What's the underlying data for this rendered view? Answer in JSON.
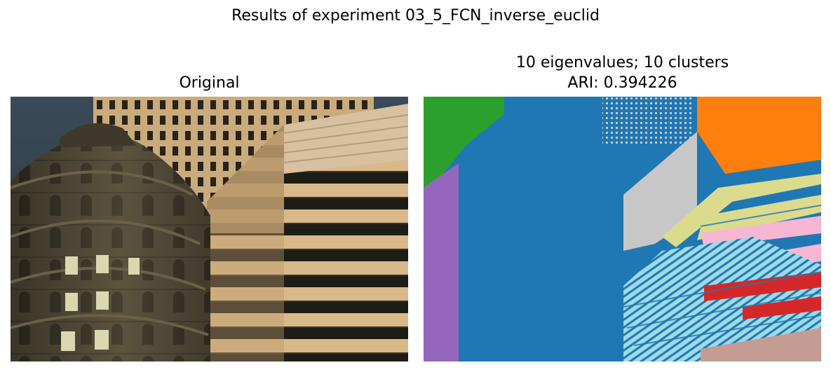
{
  "figure": {
    "suptitle": "Results of experiment 03_5_FCN_inverse_euclid"
  },
  "left_panel": {
    "title": "Original",
    "image": "photo of a round ornate stone building next to a modern tan office tower with horizontal window bands"
  },
  "right_panel": {
    "title_line1": "10 eigenvalues; 10 clusters",
    "title_line2": "ARI: 0.394226",
    "image": "segmentation map of the photo colored by 10 clusters",
    "cluster_colors": [
      "#1f77b4",
      "#ff7f0e",
      "#2ca02c",
      "#d62728",
      "#9467bd",
      "#c49c94",
      "#f7b6d2",
      "#c7c7c7",
      "#dbdb8d",
      "#9edae5"
    ]
  }
}
